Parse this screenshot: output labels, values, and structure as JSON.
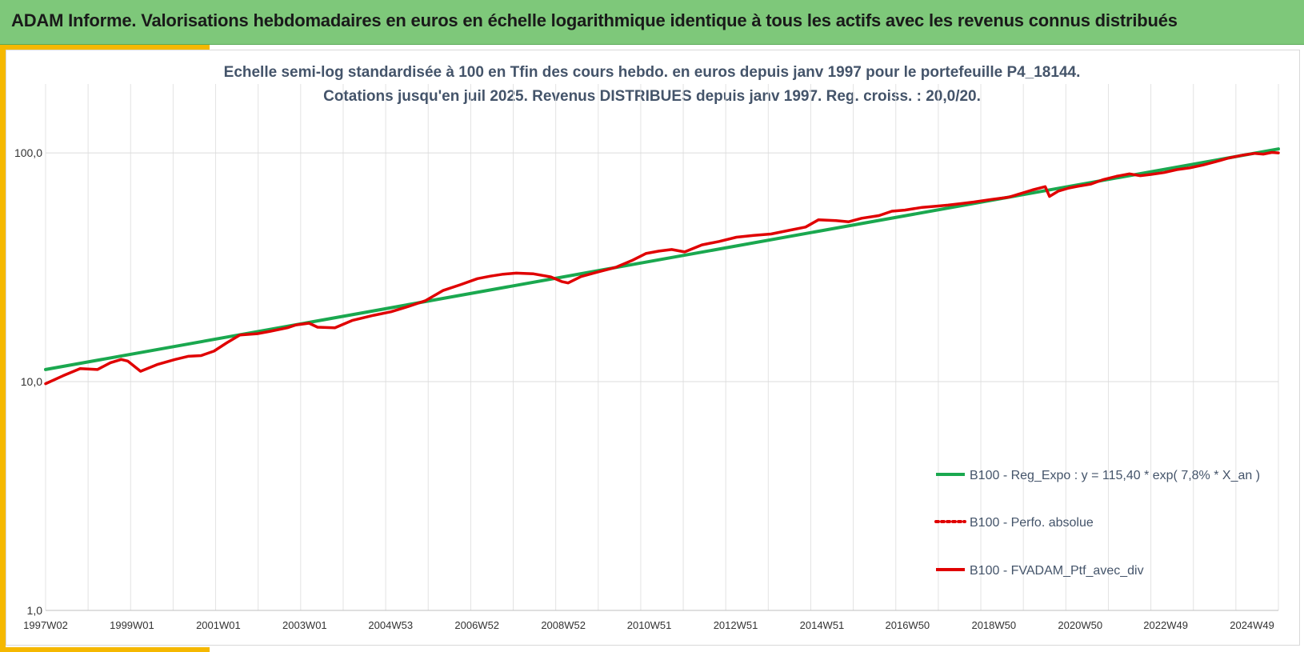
{
  "header": {
    "title": "ADAM Informe. Valorisations hebdomadaires en euros en échelle logarithmique identique à tous les actifs avec les revenus connus distribués"
  },
  "colors": {
    "banner": "#7ec87a",
    "accent": "#f5b800",
    "regression": "#1aa84f",
    "portfolio": "#e00000"
  },
  "chart_data": {
    "type": "line",
    "title": "Echelle semi-log standardisée à 100 en Tfin des cours hebdo.  en euros depuis janv 1997 pour le portefeuille P4_18144.",
    "subtitle": "Cotations jusqu'en juil 2025. Revenus DISTRIBUES depuis janv 1997. Reg. croiss. : 20,0/20.",
    "y_scale": "log",
    "ylim": [
      1,
      200
    ],
    "y_ticks": [
      {
        "value": 1,
        "label": "1,0"
      },
      {
        "value": 10,
        "label": "10,0"
      },
      {
        "value": 100,
        "label": "100,0"
      }
    ],
    "xlim": [
      1997.0,
      2025.55
    ],
    "x_ticks": [
      {
        "value": 1997.0,
        "label": "1997W02"
      },
      {
        "value": 1999.0,
        "label": "1999W01"
      },
      {
        "value": 2001.0,
        "label": "2001W01"
      },
      {
        "value": 2003.0,
        "label": "2003W01"
      },
      {
        "value": 2004.99,
        "label": "2004W53"
      },
      {
        "value": 2006.99,
        "label": "2006W52"
      },
      {
        "value": 2008.99,
        "label": "2008W52"
      },
      {
        "value": 2010.98,
        "label": "2010W51"
      },
      {
        "value": 2012.98,
        "label": "2012W51"
      },
      {
        "value": 2014.98,
        "label": "2014W51"
      },
      {
        "value": 2016.96,
        "label": "2016W50"
      },
      {
        "value": 2018.96,
        "label": "2018W50"
      },
      {
        "value": 2020.96,
        "label": "2020W50"
      },
      {
        "value": 2022.94,
        "label": "2022W49"
      },
      {
        "value": 2024.94,
        "label": "2024W49"
      }
    ],
    "grid": {
      "vertical": true,
      "horizontal": true
    },
    "legend_position": "bottom-right",
    "series": [
      {
        "name": "B100 - Reg_Expo : y = 115,40 * exp( 7,8% *  X_an )",
        "style": "solid",
        "color": "#1aa84f",
        "x": [
          1997.0,
          2025.55
        ],
        "y": [
          11.3,
          104.0
        ]
      },
      {
        "name": "B100 - Perfo. absolue",
        "style": "dotted",
        "color": "#e00000",
        "x": [],
        "y": []
      },
      {
        "name": "B100 - FVADAM_Ptf_avec_div",
        "style": "solid",
        "color": "#e00000",
        "x": [
          1997.0,
          1997.4,
          1997.8,
          1998.2,
          1998.5,
          1998.75,
          1998.9,
          1999.2,
          1999.6,
          2000.0,
          2000.3,
          2000.6,
          2000.9,
          2001.2,
          2001.5,
          2001.9,
          2002.2,
          2002.6,
          2002.8,
          2003.1,
          2003.3,
          2003.7,
          2004.1,
          2004.6,
          2005.0,
          2005.4,
          2005.8,
          2006.2,
          2006.6,
          2007.0,
          2007.3,
          2007.6,
          2007.9,
          2008.3,
          2008.7,
          2008.95,
          2009.1,
          2009.4,
          2009.8,
          2010.2,
          2010.6,
          2010.9,
          2011.2,
          2011.5,
          2011.8,
          2012.2,
          2012.6,
          2013.0,
          2013.4,
          2013.8,
          2014.2,
          2014.6,
          2014.9,
          2015.3,
          2015.6,
          2015.9,
          2016.3,
          2016.6,
          2016.9,
          2017.3,
          2017.6,
          2017.9,
          2018.2,
          2018.5,
          2018.9,
          2019.3,
          2019.6,
          2019.85,
          2020.15,
          2020.25,
          2020.45,
          2020.7,
          2020.9,
          2021.2,
          2021.5,
          2021.8,
          2022.1,
          2022.35,
          2022.6,
          2022.9,
          2023.2,
          2023.5,
          2023.8,
          2024.1,
          2024.4,
          2024.7,
          2025.0,
          2025.2,
          2025.4,
          2025.55
        ],
        "y": [
          9.8,
          10.6,
          11.4,
          11.3,
          12.1,
          12.5,
          12.3,
          11.1,
          11.9,
          12.5,
          12.9,
          13.0,
          13.6,
          14.8,
          16.0,
          16.2,
          16.6,
          17.2,
          17.7,
          18.0,
          17.3,
          17.2,
          18.5,
          19.5,
          20.2,
          21.3,
          22.6,
          25.0,
          26.5,
          28.2,
          28.9,
          29.5,
          29.8,
          29.6,
          28.7,
          27.4,
          27.0,
          28.8,
          30.2,
          31.6,
          34.0,
          36.3,
          37.2,
          37.8,
          36.9,
          39.6,
          41.0,
          42.8,
          43.6,
          44.2,
          45.8,
          47.4,
          51.0,
          50.6,
          50.0,
          51.8,
          53.2,
          55.6,
          56.2,
          57.8,
          58.4,
          59.1,
          60.0,
          61.0,
          62.6,
          64.0,
          66.5,
          68.8,
          71.2,
          64.5,
          68.0,
          70.2,
          71.4,
          73.0,
          76.5,
          79.0,
          81.0,
          79.5,
          80.5,
          82.0,
          84.5,
          86.0,
          88.5,
          91.5,
          95.0,
          97.5,
          99.5,
          98.8,
          100.5,
          100.0
        ]
      }
    ]
  }
}
